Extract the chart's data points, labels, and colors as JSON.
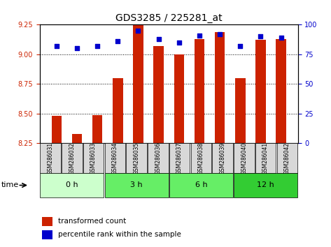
{
  "title": "GDS3285 / 225281_at",
  "samples": [
    "GSM286031",
    "GSM286032",
    "GSM286033",
    "GSM286034",
    "GSM286035",
    "GSM286036",
    "GSM286037",
    "GSM286038",
    "GSM286039",
    "GSM286040",
    "GSM286041",
    "GSM286042"
  ],
  "transformed_count": [
    8.48,
    8.33,
    8.49,
    8.8,
    9.25,
    9.07,
    9.0,
    9.13,
    9.19,
    8.8,
    9.12,
    9.13
  ],
  "percentile_rank": [
    82,
    80,
    82,
    86,
    95,
    88,
    85,
    91,
    92,
    82,
    90,
    89
  ],
  "ymin": 8.25,
  "ymax": 9.25,
  "yticks": [
    8.25,
    8.5,
    8.75,
    9.0,
    9.25
  ],
  "right_yticks": [
    0,
    25,
    50,
    75,
    100
  ],
  "bar_color": "#cc2200",
  "dot_color": "#0000cc",
  "legend_bar_label": "transformed count",
  "legend_dot_label": "percentile rank within the sample",
  "title_fontsize": 10,
  "time_groups": [
    {
      "label": "0 h",
      "start": 0,
      "end": 2,
      "color": "#ccffcc"
    },
    {
      "label": "3 h",
      "start": 3,
      "end": 5,
      "color": "#66ee66"
    },
    {
      "label": "6 h",
      "start": 6,
      "end": 8,
      "color": "#66ee66"
    },
    {
      "label": "12 h",
      "start": 9,
      "end": 11,
      "color": "#33cc33"
    }
  ]
}
